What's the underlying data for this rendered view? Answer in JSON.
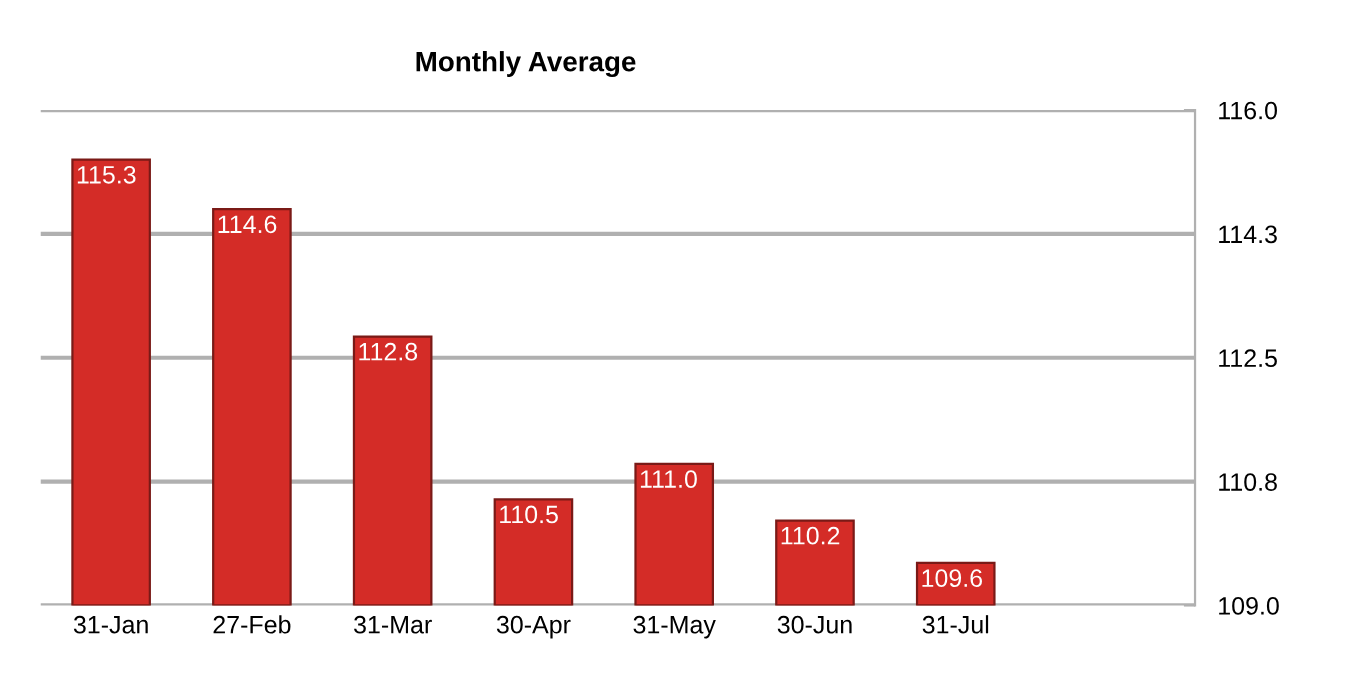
{
  "chart_data": {
    "type": "bar",
    "title": "Monthly Average",
    "categories": [
      "31-Jan",
      "27-Feb",
      "31-Mar",
      "30-Apr",
      "31-May",
      "30-Jun",
      "31-Jul"
    ],
    "values": [
      115.3,
      114.6,
      112.8,
      110.5,
      111.0,
      110.2,
      109.6
    ],
    "color": "#d42c27",
    "ylim": [
      109.0,
      116.0
    ],
    "yticks": [
      {
        "value": 109.0,
        "label": "109.0"
      },
      {
        "value": 110.75,
        "label": "110.8"
      },
      {
        "value": 112.5,
        "label": "112.5"
      },
      {
        "value": 114.25,
        "label": "114.3"
      },
      {
        "value": 116.0,
        "label": "116.0"
      }
    ],
    "value_labels": [
      "115.3",
      "114.6",
      "112.8",
      "110.5",
      "111.0",
      "110.2",
      "109.6"
    ],
    "grid": "y",
    "legend": false
  }
}
